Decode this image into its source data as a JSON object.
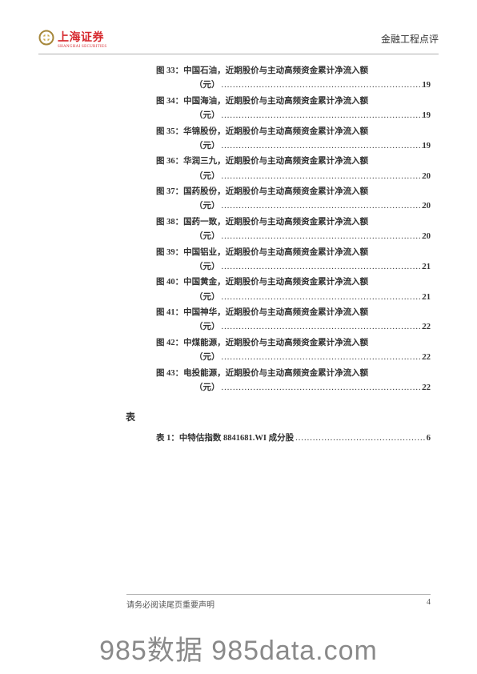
{
  "header": {
    "logo_cn": "上海证券",
    "logo_en": "SHANGHAI SECURITIES",
    "right": "金融工程点评"
  },
  "toc": {
    "figures": [
      {
        "label": "图 33：中国石油，近期股价与主动高频资金累计净流入额",
        "unit": "（元）",
        "page": "19"
      },
      {
        "label": "图 34：中国海油，近期股价与主动高频资金累计净流入额",
        "unit": "（元）",
        "page": "19"
      },
      {
        "label": "图 35：华锦股份，近期股价与主动高频资金累计净流入额",
        "unit": "（元）",
        "page": "19"
      },
      {
        "label": "图 36：华润三九，近期股价与主动高频资金累计净流入额",
        "unit": "（元）",
        "page": "20"
      },
      {
        "label": "图 37：国药股份，近期股价与主动高频资金累计净流入额",
        "unit": "（元）",
        "page": "20"
      },
      {
        "label": "图 38：国药一致，近期股价与主动高频资金累计净流入额",
        "unit": "（元）",
        "page": "20"
      },
      {
        "label": "图 39：中国铝业，近期股价与主动高频资金累计净流入额",
        "unit": "（元）",
        "page": "21"
      },
      {
        "label": "图 40：中国黄金，近期股价与主动高频资金累计净流入额",
        "unit": "（元）",
        "page": "21"
      },
      {
        "label": "图 41：中国神华，近期股价与主动高频资金累计净流入额",
        "unit": "（元）",
        "page": "22"
      },
      {
        "label": "图 42：中煤能源，近期股价与主动高频资金累计净流入额",
        "unit": "（元）",
        "page": "22"
      },
      {
        "label": "图 43：电投能源，近期股价与主动高频资金累计净流入额",
        "unit": "（元）",
        "page": "22"
      }
    ],
    "tables_section": "表",
    "tables": [
      {
        "label": "表 1：中特估指数 8841681.WI 成分股 ",
        "page": "6"
      }
    ]
  },
  "footer": {
    "disclaimer": "请务必阅读尾页重要声明",
    "pagenum": "4"
  },
  "watermark": "985数据 985data.com",
  "colors": {
    "brand_red": "#d6282d",
    "text": "#333333",
    "rule": "#b0b0b0",
    "watermark": "#8a8a8a",
    "logo_gold": "#c9a94a",
    "logo_ring": "#a6873a"
  },
  "dots_fill": "........................................................................................................................"
}
